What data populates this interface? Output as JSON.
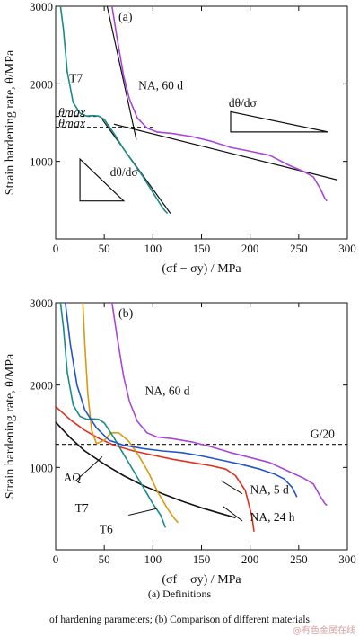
{
  "captions": {
    "line1": "(a) Definitions",
    "line2": "of hardening parameters; (b) Comparison of different materials"
  },
  "watermark": "@有色金属在线",
  "chart_data": [
    {
      "type": "line",
      "panel_label": "(a)",
      "ylabel": "Strain hardening rate, θ/MPa",
      "xlabel": "(σf − σy) / MPa",
      "xlim": [
        0,
        300
      ],
      "ylim": [
        0,
        3000
      ],
      "x_ticks": [
        0,
        50,
        100,
        150,
        200,
        250,
        300
      ],
      "y_ticks": [
        1000,
        2000,
        3000
      ],
      "series": [
        {
          "name": "T7",
          "color": "#1b8a8a",
          "points": [
            [
              5,
              3000
            ],
            [
              8,
              2700
            ],
            [
              12,
              2150
            ],
            [
              18,
              1760
            ],
            [
              25,
              1620
            ],
            [
              32,
              1585
            ],
            [
              38,
              1590
            ],
            [
              44,
              1585
            ],
            [
              50,
              1540
            ],
            [
              60,
              1360
            ],
            [
              70,
              1160
            ],
            [
              80,
              980
            ],
            [
              90,
              800
            ],
            [
              100,
              600
            ],
            [
              108,
              440
            ],
            [
              112,
              370
            ],
            [
              115,
              330
            ]
          ]
        },
        {
          "name": "NA, 60 d",
          "color": "#a846d8",
          "points": [
            [
              58,
              3000
            ],
            [
              63,
              2600
            ],
            [
              70,
              2100
            ],
            [
              76,
              1800
            ],
            [
              84,
              1560
            ],
            [
              94,
              1430
            ],
            [
              104,
              1380
            ],
            [
              120,
              1360
            ],
            [
              140,
              1320
            ],
            [
              160,
              1260
            ],
            [
              180,
              1180
            ],
            [
              200,
              1130
            ],
            [
              220,
              1080
            ],
            [
              240,
              950
            ],
            [
              255,
              870
            ],
            [
              265,
              800
            ],
            [
              272,
              650
            ],
            [
              277,
              520
            ],
            [
              279,
              490
            ]
          ]
        }
      ],
      "reference_lines": [
        {
          "kind": "tangent",
          "points": [
            [
              53,
              3000
            ],
            [
              83,
              1280
            ]
          ]
        },
        {
          "kind": "tangent",
          "points": [
            [
              60,
              1480
            ],
            [
              290,
              760
            ]
          ]
        },
        {
          "kind": "tangent",
          "points": [
            [
              48,
              1540
            ],
            [
              118,
              330
            ]
          ]
        }
      ],
      "hlines": [
        {
          "label": "θmax",
          "y": 1580,
          "x_end": 42
        },
        {
          "label": "θmax",
          "y": 1440,
          "x_end": 100
        }
      ],
      "annotations": [
        {
          "text": "T7",
          "x": 14,
          "y": 2020
        },
        {
          "text": "NA, 60 d",
          "x": 85,
          "y": 1930
        },
        {
          "text": "θmax",
          "x": 0,
          "y": 1580
        },
        {
          "text": "θmax",
          "x": 0,
          "y": 1440
        },
        {
          "text": "dθ/dσ",
          "x": 178,
          "y": 1700
        },
        {
          "text": "dθ/dσ",
          "x": 56,
          "y": 810
        }
      ],
      "slope_triangles": [
        {
          "vertices": [
            [
              180,
              1640
            ],
            [
              180,
              1380
            ],
            [
              280,
              1380
            ]
          ]
        },
        {
          "vertices": [
            [
              25,
              1030
            ],
            [
              25,
              490
            ],
            [
              70,
              490
            ]
          ]
        }
      ]
    },
    {
      "type": "line",
      "panel_label": "(b)",
      "ylabel": "Strain hardening rate, θ/MPa",
      "xlabel": "(σf − σy) / MPa",
      "xlim": [
        0,
        300
      ],
      "ylim": [
        0,
        3000
      ],
      "x_ticks": [
        0,
        50,
        100,
        150,
        200,
        250,
        300
      ],
      "y_ticks": [
        1000,
        2000,
        3000
      ],
      "series": [
        {
          "name": "AQ",
          "color": "#111111",
          "points": [
            [
              0,
              1550
            ],
            [
              15,
              1360
            ],
            [
              30,
              1200
            ],
            [
              50,
              1040
            ],
            [
              70,
              900
            ],
            [
              90,
              780
            ],
            [
              110,
              680
            ],
            [
              130,
              590
            ],
            [
              150,
              510
            ],
            [
              170,
              440
            ],
            [
              185,
              390
            ]
          ]
        },
        {
          "name": "NA, 24 h",
          "color": "#e03020",
          "points": [
            [
              0,
              1740
            ],
            [
              15,
              1580
            ],
            [
              30,
              1450
            ],
            [
              45,
              1350
            ],
            [
              60,
              1270
            ],
            [
              80,
              1200
            ],
            [
              100,
              1150
            ],
            [
              120,
              1100
            ],
            [
              140,
              1060
            ],
            [
              160,
              1020
            ],
            [
              175,
              980
            ],
            [
              185,
              900
            ],
            [
              195,
              720
            ],
            [
              202,
              400
            ],
            [
              204,
              220
            ]
          ]
        },
        {
          "name": "T7",
          "color": "#d99a10",
          "points": [
            [
              28,
              3000
            ],
            [
              30,
              2500
            ],
            [
              33,
              1900
            ],
            [
              37,
              1450
            ],
            [
              42,
              1290
            ],
            [
              50,
              1330
            ],
            [
              57,
              1420
            ],
            [
              65,
              1420
            ],
            [
              75,
              1320
            ],
            [
              85,
              1150
            ],
            [
              95,
              950
            ],
            [
              105,
              700
            ],
            [
              115,
              500
            ],
            [
              122,
              380
            ],
            [
              126,
              330
            ]
          ]
        },
        {
          "name": "T6",
          "color": "#1b8a8a",
          "points": [
            [
              5,
              3000
            ],
            [
              8,
              2700
            ],
            [
              12,
              2150
            ],
            [
              18,
              1760
            ],
            [
              25,
              1620
            ],
            [
              32,
              1585
            ],
            [
              38,
              1590
            ],
            [
              44,
              1585
            ],
            [
              50,
              1540
            ],
            [
              60,
              1360
            ],
            [
              70,
              1160
            ],
            [
              80,
              960
            ],
            [
              90,
              760
            ],
            [
              100,
              560
            ],
            [
              108,
              420
            ],
            [
              113,
              270
            ]
          ]
        },
        {
          "name": "NA, 5 d",
          "color": "#2255cc",
          "points": [
            [
              10,
              3000
            ],
            [
              15,
              2500
            ],
            [
              22,
              2000
            ],
            [
              30,
              1700
            ],
            [
              42,
              1480
            ],
            [
              55,
              1330
            ],
            [
              70,
              1270
            ],
            [
              90,
              1230
            ],
            [
              110,
              1200
            ],
            [
              130,
              1180
            ],
            [
              150,
              1140
            ],
            [
              170,
              1090
            ],
            [
              190,
              1040
            ],
            [
              210,
              980
            ],
            [
              225,
              920
            ],
            [
              235,
              860
            ],
            [
              243,
              760
            ],
            [
              247,
              670
            ],
            [
              248,
              640
            ]
          ]
        },
        {
          "name": "NA, 60 d",
          "color": "#a846d8",
          "points": [
            [
              58,
              3000
            ],
            [
              63,
              2600
            ],
            [
              70,
              2100
            ],
            [
              76,
              1800
            ],
            [
              84,
              1560
            ],
            [
              94,
              1420
            ],
            [
              104,
              1370
            ],
            [
              120,
              1350
            ],
            [
              140,
              1310
            ],
            [
              160,
              1250
            ],
            [
              180,
              1180
            ],
            [
              200,
              1120
            ],
            [
              220,
              1060
            ],
            [
              240,
              950
            ],
            [
              255,
              870
            ],
            [
              265,
              800
            ],
            [
              272,
              650
            ],
            [
              277,
              560
            ],
            [
              279,
              540
            ]
          ]
        }
      ],
      "hlines": [
        {
          "label": "G/20",
          "y": 1280,
          "x_start": 0,
          "x_end": 300
        }
      ],
      "annotations": [
        {
          "text": "NA, 60 d",
          "x": 92,
          "y": 1880
        },
        {
          "text": "G/20",
          "x": 262,
          "y": 1360
        },
        {
          "text": "NA, 5 d",
          "x": 200,
          "y": 680
        },
        {
          "text": "NA, 24 h",
          "x": 200,
          "y": 350
        },
        {
          "text": "AQ",
          "x": 8,
          "y": 830
        },
        {
          "text": "T7",
          "x": 20,
          "y": 460
        },
        {
          "text": "T6",
          "x": 45,
          "y": 200
        }
      ],
      "pointers": [
        {
          "from": [
            20,
            830
          ],
          "to": [
            48,
            1130
          ]
        },
        {
          "from": [
            75,
            420
          ],
          "to": [
            104,
            500
          ]
        },
        {
          "from": [
            192,
            680
          ],
          "to": [
            170,
            840
          ]
        },
        {
          "from": [
            192,
            350
          ],
          "to": [
            172,
            530
          ]
        }
      ]
    }
  ]
}
